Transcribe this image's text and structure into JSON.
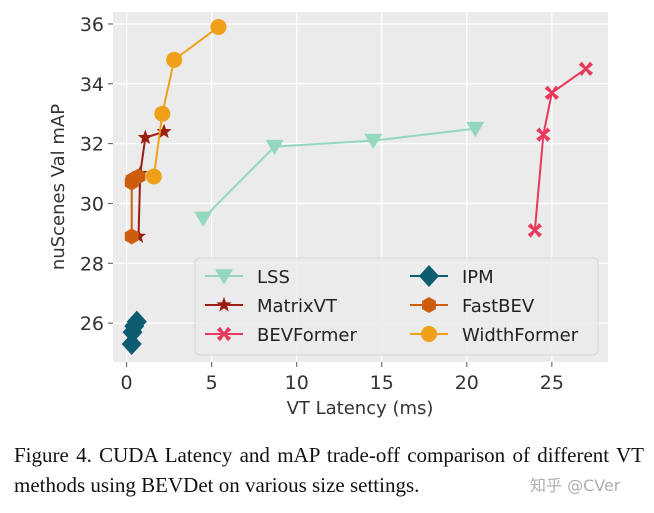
{
  "chart_data": {
    "type": "line",
    "xlabel": "VT Latency (ms)",
    "ylabel": "nuScenes Val mAP",
    "xlim": [
      -0.8,
      28.3
    ],
    "ylim": [
      24.7,
      36.4
    ],
    "xticks": [
      0,
      5,
      10,
      15,
      20,
      25
    ],
    "yticks": [
      26,
      28,
      30,
      32,
      34,
      36
    ],
    "grid": true,
    "legend_position": "lower-right",
    "series": [
      {
        "name": "LSS",
        "marker": "triangle-down",
        "color": "#93d8bd",
        "x": [
          4.5,
          8.7,
          14.5,
          20.5
        ],
        "y": [
          29.5,
          31.9,
          32.1,
          32.5
        ]
      },
      {
        "name": "MatrixVT",
        "marker": "star",
        "color": "#9b1e14",
        "x": [
          0.7,
          0.8,
          1.1,
          2.2
        ],
        "y": [
          28.9,
          31.0,
          32.2,
          32.4
        ]
      },
      {
        "name": "BEVFormer",
        "marker": "x",
        "color": "#e8395d",
        "x": [
          24.0,
          24.5,
          25.0,
          27.0
        ],
        "y": [
          29.1,
          32.3,
          33.7,
          34.5
        ]
      },
      {
        "name": "IPM",
        "marker": "diamond",
        "color": "#0d5c72",
        "x": [
          0.3,
          0.35,
          0.45,
          0.6
        ],
        "y": [
          25.3,
          25.7,
          25.9,
          26.05
        ]
      },
      {
        "name": "FastBEV",
        "marker": "hexagon",
        "color": "#cc5d0d",
        "x": [
          0.3,
          0.3,
          0.35,
          0.7
        ],
        "y": [
          28.9,
          30.7,
          30.8,
          30.9
        ]
      },
      {
        "name": "WidthFormer",
        "marker": "circle",
        "color": "#f0a018",
        "x": [
          1.6,
          2.1,
          2.8,
          5.4
        ],
        "y": [
          30.9,
          33.0,
          34.8,
          35.9
        ]
      }
    ]
  },
  "caption": "Figure 4.  CUDA Latency and mAP trade-off comparison of different VT methods using BEVDet on various size settings.",
  "watermark": "知乎 @CVer"
}
